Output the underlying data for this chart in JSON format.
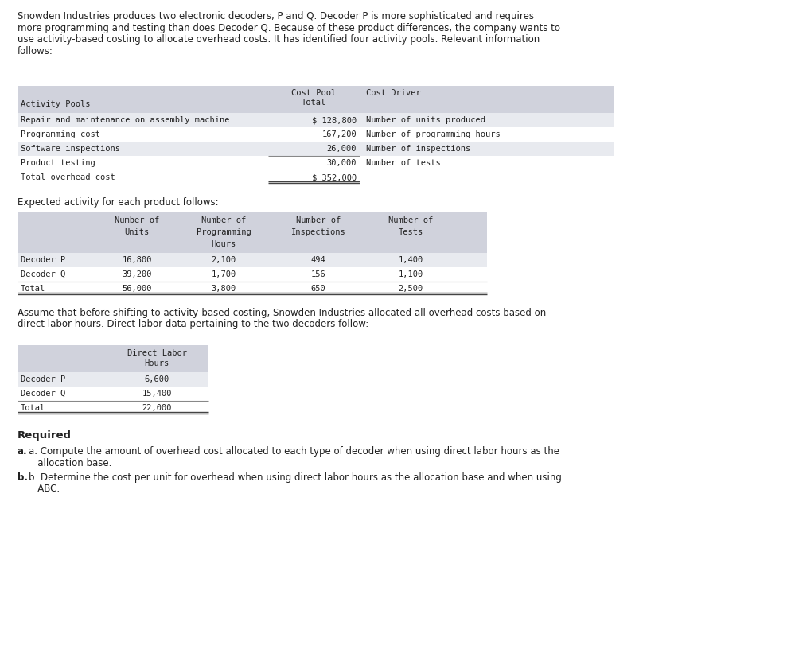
{
  "intro_text_lines": [
    "Snowden Industries produces two electronic decoders, P and Q. Decoder P is more sophisticated and requires",
    "more programming and testing than does Decoder Q. Because of these product differences, the company wants to",
    "use activity-based costing to allocate overhead costs. It has identified four activity pools. Relevant information",
    "follows:"
  ],
  "table1_rows": [
    [
      "Repair and maintenance on assembly machine",
      "$ 128,800",
      "Number of units produced"
    ],
    [
      "Programming cost",
      "167,200",
      "Number of programming hours"
    ],
    [
      "Software inspections",
      "26,000",
      "Number of inspections"
    ],
    [
      "Product testing",
      "30,000",
      "Number of tests"
    ]
  ],
  "table1_total": [
    "Total overhead cost",
    "$ 352,000"
  ],
  "expected_activity_text": "Expected activity for each product follows:",
  "table2_rows": [
    [
      "Decoder P",
      "16,800",
      "2,100",
      "494",
      "1,400"
    ],
    [
      "Decoder Q",
      "39,200",
      "1,700",
      "156",
      "1,100"
    ],
    [
      "Total",
      "56,000",
      "3,800",
      "650",
      "2,500"
    ]
  ],
  "assume_text_lines": [
    "Assume that before shifting to activity-based costing, Snowden Industries allocated all overhead costs based on",
    "direct labor hours. Direct labor data pertaining to the two decoders follow:"
  ],
  "table3_rows": [
    [
      "Decoder P",
      "6,600"
    ],
    [
      "Decoder Q",
      "15,400"
    ],
    [
      "Total",
      "22,000"
    ]
  ],
  "req_a_line1": "a. Compute the amount of overhead cost allocated to each type of decoder when using direct labor hours as the",
  "req_a_line2": "   allocation base.",
  "req_b_line1": "b. Determine the cost per unit for overhead when using direct labor hours as the allocation base and when using",
  "req_b_line2": "   ABC.",
  "bg_color": "#ffffff",
  "table_hdr_bg": "#d0d2dc",
  "table_row_alt": "#e8eaef",
  "font_color": "#222222",
  "line_color": "#888888",
  "dline_color": "#444444",
  "mono_font": "DejaVu Sans Mono",
  "sans_font": "DejaVu Sans",
  "fs_mono": 7.5,
  "fs_body": 8.5,
  "fs_bold": 8.5,
  "fs_required": 9.5
}
